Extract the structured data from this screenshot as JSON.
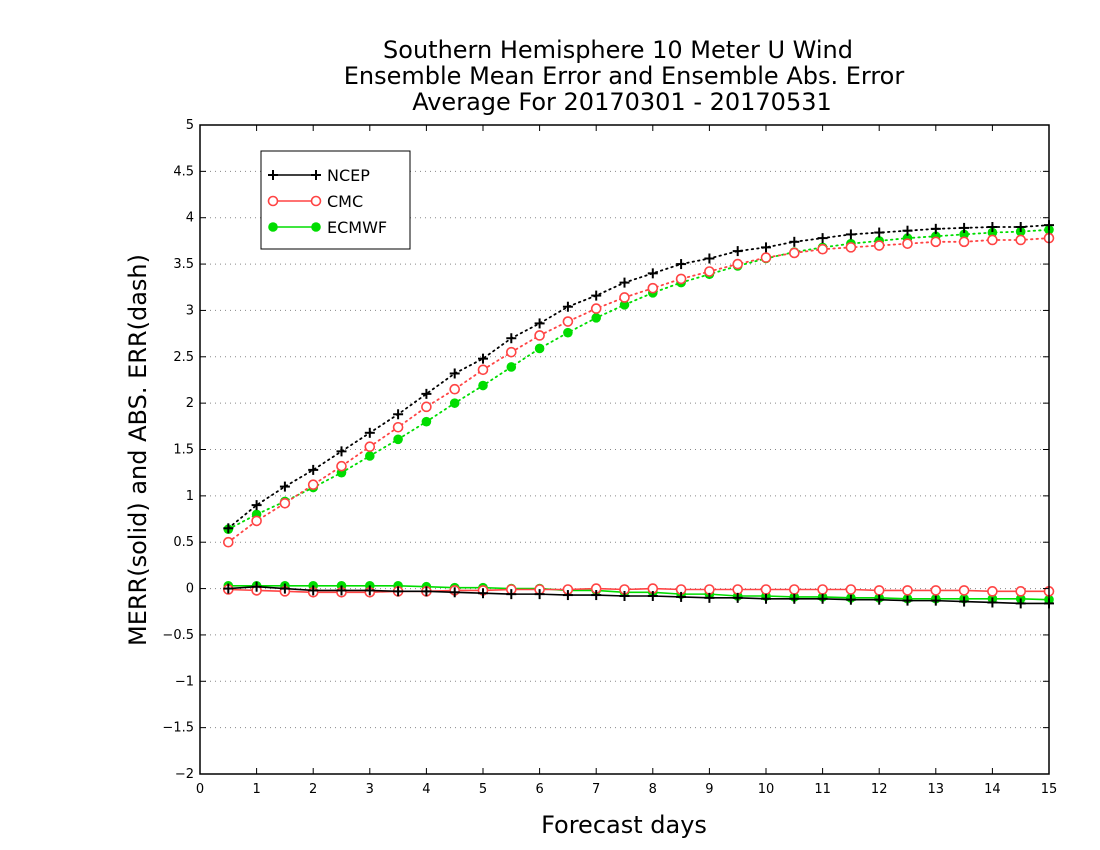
{
  "chart_data": {
    "type": "line",
    "title": [
      "Southern Hemisphere 10 Meter U Wind",
      "Ensemble Mean Error and Ensemble Abs. Error",
      "Average For 20170301 - 20170531"
    ],
    "xlabel": "Forecast days",
    "ylabel": "MERR(solid) and ABS. ERR(dash)",
    "xlim": [
      0,
      15
    ],
    "ylim": [
      -2,
      5
    ],
    "x_ticks": [
      0,
      1,
      2,
      3,
      4,
      5,
      6,
      7,
      8,
      9,
      10,
      11,
      12,
      13,
      14,
      15
    ],
    "x_tick_labels": [
      "0",
      "1",
      "2",
      "3",
      "4",
      "5",
      "6",
      "7",
      "8",
      "9",
      "10",
      "11",
      "12",
      "13",
      "14",
      "15"
    ],
    "y_ticks": [
      -2,
      -1.5,
      -1,
      -0.5,
      0,
      0.5,
      1,
      1.5,
      2,
      2.5,
      3,
      3.5,
      4,
      4.5,
      5
    ],
    "y_tick_labels": [
      "−2",
      "−1.5",
      "−1",
      "−0.5",
      "0",
      "0.5",
      "1",
      "1.5",
      "2",
      "2.5",
      "3",
      "3.5",
      "4",
      "4.5",
      "5"
    ],
    "grid": "horizontal dotted",
    "legend_position": "top-left",
    "x": [
      0.5,
      1,
      1.5,
      2,
      2.5,
      3,
      3.5,
      4,
      4.5,
      5,
      5.5,
      6,
      6.5,
      7,
      7.5,
      8,
      8.5,
      9,
      9.5,
      10,
      10.5,
      11,
      11.5,
      12,
      12.5,
      13,
      13.5,
      14,
      14.5,
      15
    ],
    "series": [
      {
        "name": "NCEP",
        "color": "#000000",
        "marker": "plus",
        "mean_error": [
          0.0,
          0.02,
          0.0,
          -0.02,
          -0.02,
          -0.02,
          -0.03,
          -0.03,
          -0.04,
          -0.05,
          -0.06,
          -0.06,
          -0.07,
          -0.07,
          -0.08,
          -0.08,
          -0.09,
          -0.1,
          -0.1,
          -0.11,
          -0.11,
          -0.11,
          -0.12,
          -0.12,
          -0.13,
          -0.13,
          -0.14,
          -0.15,
          -0.16,
          -0.16
        ],
        "abs_error": [
          0.65,
          0.9,
          1.1,
          1.28,
          1.48,
          1.68,
          1.88,
          2.1,
          2.32,
          2.48,
          2.7,
          2.86,
          3.04,
          3.16,
          3.3,
          3.4,
          3.5,
          3.56,
          3.64,
          3.68,
          3.74,
          3.78,
          3.82,
          3.84,
          3.86,
          3.88,
          3.89,
          3.9,
          3.9,
          3.92
        ]
      },
      {
        "name": "CMC",
        "color": "#ff4444",
        "marker": "open-circle",
        "mean_error": [
          -0.01,
          -0.02,
          -0.03,
          -0.04,
          -0.04,
          -0.04,
          -0.03,
          -0.03,
          -0.02,
          -0.02,
          -0.01,
          -0.01,
          -0.01,
          0.0,
          -0.01,
          0.0,
          -0.01,
          -0.01,
          -0.01,
          -0.01,
          -0.01,
          -0.01,
          -0.01,
          -0.02,
          -0.02,
          -0.02,
          -0.02,
          -0.03,
          -0.03,
          -0.03
        ],
        "abs_error": [
          0.5,
          0.73,
          0.92,
          1.12,
          1.32,
          1.53,
          1.74,
          1.96,
          2.15,
          2.36,
          2.55,
          2.73,
          2.88,
          3.02,
          3.14,
          3.24,
          3.34,
          3.42,
          3.5,
          3.57,
          3.62,
          3.66,
          3.68,
          3.7,
          3.72,
          3.74,
          3.74,
          3.76,
          3.76,
          3.78
        ]
      },
      {
        "name": "ECMWF",
        "color": "#00dd00",
        "marker": "filled-circle",
        "mean_error": [
          0.03,
          0.03,
          0.03,
          0.03,
          0.03,
          0.03,
          0.03,
          0.02,
          0.01,
          0.01,
          0.0,
          0.0,
          -0.02,
          -0.02,
          -0.04,
          -0.04,
          -0.06,
          -0.06,
          -0.08,
          -0.08,
          -0.09,
          -0.09,
          -0.1,
          -0.1,
          -0.11,
          -0.11,
          -0.11,
          -0.11,
          -0.11,
          -0.12
        ],
        "abs_error": [
          0.64,
          0.8,
          0.94,
          1.09,
          1.25,
          1.43,
          1.61,
          1.8,
          2.0,
          2.19,
          2.39,
          2.59,
          2.76,
          2.92,
          3.06,
          3.19,
          3.3,
          3.39,
          3.48,
          3.56,
          3.63,
          3.68,
          3.72,
          3.75,
          3.78,
          3.8,
          3.82,
          3.84,
          3.85,
          3.87
        ]
      }
    ]
  }
}
